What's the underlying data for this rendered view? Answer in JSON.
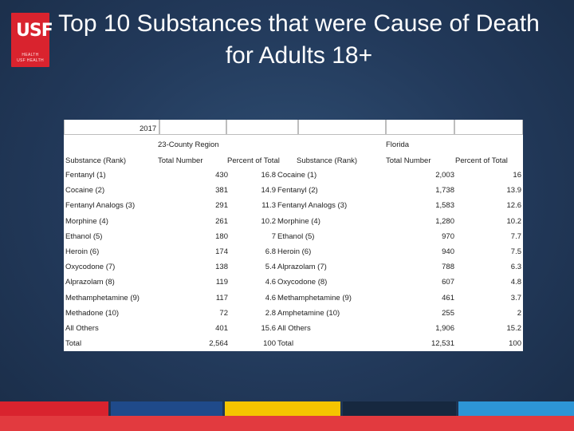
{
  "slide": {
    "title_line1": "Top 10 Substances that were Cause of Death",
    "title_line2": "for Adults 18+",
    "logo": {
      "mark": "USF",
      "line1": "HEALTH",
      "line2": "USF HEALTH"
    }
  },
  "table": {
    "year": "2017",
    "region_left": "23-County Region",
    "region_right": "Florida",
    "headers": {
      "left_substance": "Substance (Rank)",
      "left_total": "Total Number",
      "left_percent": "Percent of Total",
      "right_substance": "Substance (Rank)",
      "right_total": "Total Number",
      "right_percent": "Percent of Total"
    },
    "rows": [
      {
        "left_substance": "Fentanyl (1)",
        "left_total": "430",
        "left_percent": "16.8",
        "right_substance": "Cocaine (1)",
        "right_total": "2,003",
        "right_percent": "16"
      },
      {
        "left_substance": "Cocaine (2)",
        "left_total": "381",
        "left_percent": "14.9",
        "right_substance": "Fentanyl (2)",
        "right_total": "1,738",
        "right_percent": "13.9"
      },
      {
        "left_substance": "Fentanyl Analogs (3)",
        "left_total": "291",
        "left_percent": "11.3",
        "right_substance": "Fentanyl Analogs (3)",
        "right_total": "1,583",
        "right_percent": "12.6"
      },
      {
        "left_substance": "Morphine (4)",
        "left_total": "261",
        "left_percent": "10.2",
        "right_substance": "Morphine (4)",
        "right_total": "1,280",
        "right_percent": "10.2"
      },
      {
        "left_substance": "Ethanol (5)",
        "left_total": "180",
        "left_percent": "7",
        "right_substance": "Ethanol (5)",
        "right_total": "970",
        "right_percent": "7.7"
      },
      {
        "left_substance": "Heroin (6)",
        "left_total": "174",
        "left_percent": "6.8",
        "right_substance": "Heroin (6)",
        "right_total": "940",
        "right_percent": "7.5"
      },
      {
        "left_substance": "Oxycodone (7)",
        "left_total": "138",
        "left_percent": "5.4",
        "right_substance": "Alprazolam (7)",
        "right_total": "788",
        "right_percent": "6.3"
      },
      {
        "left_substance": "Alprazolam (8)",
        "left_total": "119",
        "left_percent": "4.6",
        "right_substance": "Oxycodone (8)",
        "right_total": "607",
        "right_percent": "4.8"
      },
      {
        "left_substance": "Methamphetamine (9)",
        "left_total": "117",
        "left_percent": "4.6",
        "right_substance": "Methamphetamine (9)",
        "right_total": "461",
        "right_percent": "3.7"
      },
      {
        "left_substance": "Methadone (10)",
        "left_total": "72",
        "left_percent": "2.8",
        "right_substance": "Amphetamine (10)",
        "right_total": "255",
        "right_percent": "2"
      },
      {
        "left_substance": "All Others",
        "left_total": "401",
        "left_percent": "15.6",
        "right_substance": "All Others",
        "right_total": "1,906",
        "right_percent": "15.2"
      },
      {
        "left_substance": "Total",
        "left_total": "2,564",
        "left_percent": "100",
        "right_substance": "Total",
        "right_total": "12,531",
        "right_percent": "100"
      }
    ]
  },
  "colors": {
    "brand_red": "#d9232e",
    "brand_blue": "#1f4a8a",
    "brand_yellow": "#f5c400",
    "background": "#22395a"
  }
}
